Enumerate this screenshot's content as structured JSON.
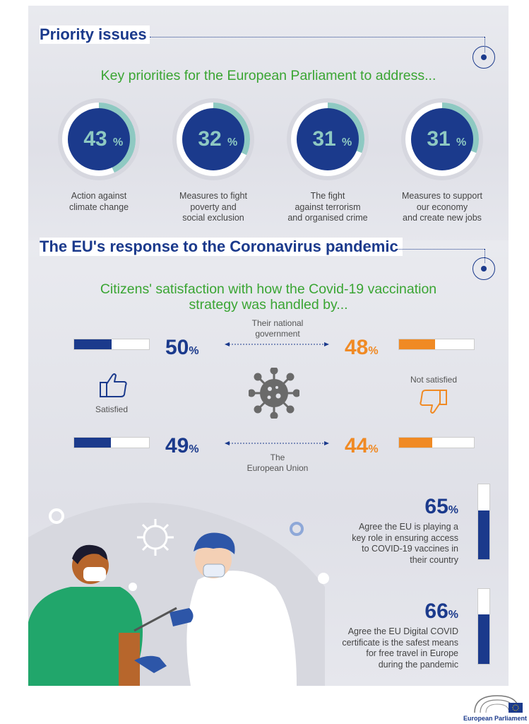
{
  "priority": {
    "title": "Priority issues",
    "subtitle": "Key priorities for the European Parliament to address...",
    "items": [
      {
        "value": "43",
        "pct_sign": "%",
        "fraction": 0.43,
        "label_lines": [
          "Action against",
          "climate change"
        ]
      },
      {
        "value": "32",
        "pct_sign": "%",
        "fraction": 0.32,
        "label_lines": [
          "Measures to fight",
          "poverty and",
          "social exclusion"
        ]
      },
      {
        "value": "31",
        "pct_sign": "%",
        "fraction": 0.31,
        "label_lines": [
          "The fight",
          "against terrorism",
          "and organised crime"
        ]
      },
      {
        "value": "31",
        "pct_sign": "%",
        "fraction": 0.31,
        "label_lines": [
          "Measures to support",
          "our economy",
          "and create new jobs"
        ]
      }
    ]
  },
  "covid": {
    "title": "The EU's  response to the Coronavirus pandemic",
    "subtitle_line1": "Citizens' satisfaction with how the Covid-19  vaccination",
    "subtitle_line2": "strategy was handled by...",
    "national_label_1": "Their national",
    "national_label_2": "government",
    "eu_label_1": "The",
    "eu_label_2": "European Union",
    "satisfied_label": "Satisfied",
    "not_satisfied_label": "Not satisfied",
    "national_satisfied": {
      "value": "50",
      "pct_sign": "%",
      "fraction": 0.5
    },
    "national_not_satisfied": {
      "value": "48",
      "pct_sign": "%",
      "fraction": 0.48
    },
    "eu_satisfied": {
      "value": "49",
      "pct_sign": "%",
      "fraction": 0.49
    },
    "eu_not_satisfied": {
      "value": "44",
      "pct_sign": "%",
      "fraction": 0.44
    }
  },
  "stats": [
    {
      "value": "65",
      "pct_sign": "%",
      "fraction": 0.65,
      "lines": [
        "Agree the EU is playing a",
        "key role in ensuring access",
        "to COVID-19 vaccines in",
        "their country"
      ]
    },
    {
      "value": "66",
      "pct_sign": "%",
      "fraction": 0.66,
      "lines": [
        "Agree the EU Digital COVID",
        "certificate is the safest means",
        "for free travel in Europe",
        "during the pandemic"
      ]
    }
  ],
  "footer": {
    "logo_text": "European Parliament"
  },
  "colors": {
    "navy": "#1b3a8c",
    "teal": "#8ec9c2",
    "green": "#3aa533",
    "orange": "#f08a24"
  },
  "icons": [
    "thumbs-up-icon",
    "thumbs-down-icon",
    "virus-icon",
    "target-icon"
  ]
}
